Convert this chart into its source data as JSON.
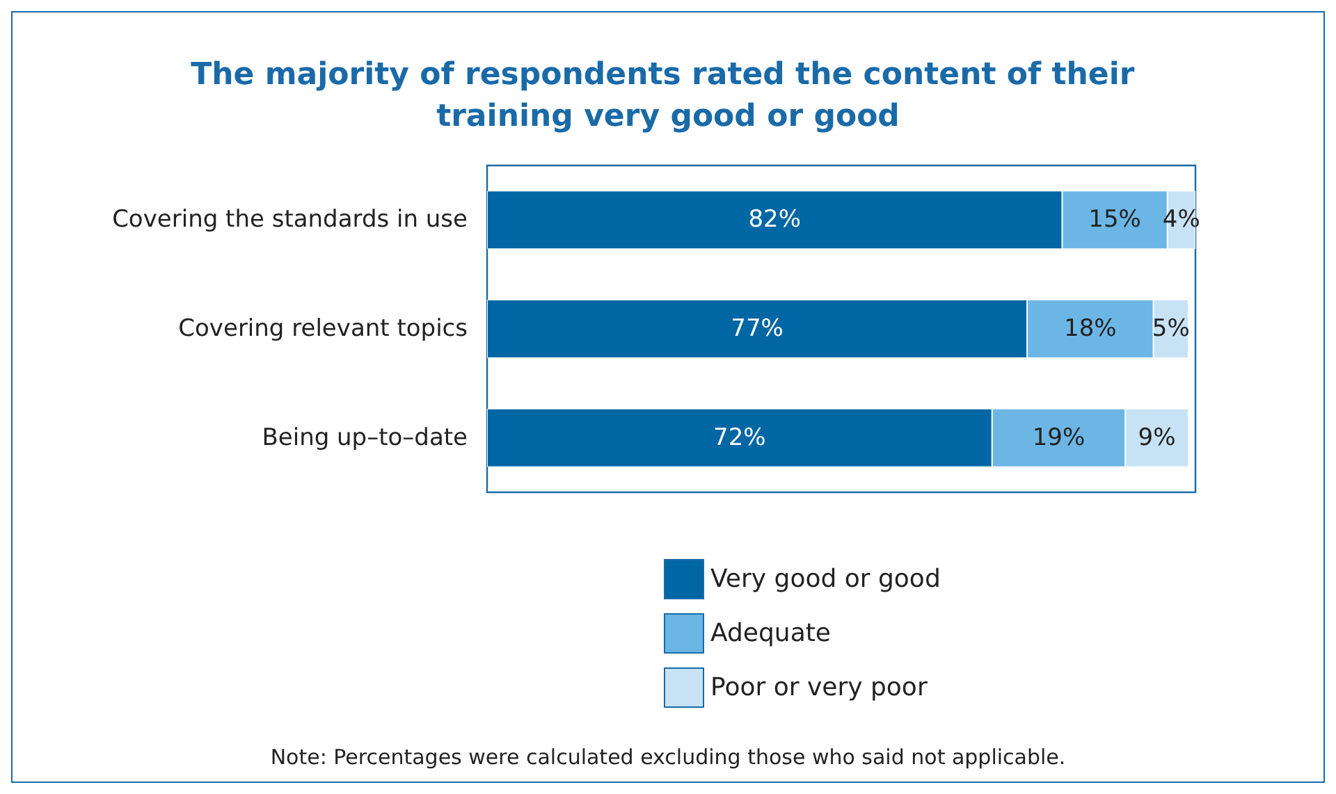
{
  "chart_data": {
    "type": "bar",
    "orientation": "horizontal",
    "stacked": true,
    "title": "The majority of respondents rated the content of their training very good or good",
    "categories": [
      "Covering the standards in use",
      "Covering relevant topics",
      "Being up–to–date"
    ],
    "series": [
      {
        "name": "Very good or good",
        "color": "#0066a4",
        "values": [
          82,
          77,
          72
        ],
        "value_labels": [
          "82%",
          "77%",
          "72%"
        ]
      },
      {
        "name": "Adequate",
        "color": "#6cb6e6",
        "values": [
          15,
          18,
          19
        ],
        "value_labels": [
          "15%",
          "18%",
          "19%"
        ]
      },
      {
        "name": "Poor or very poor",
        "color": "#c8e2f5",
        "values": [
          4,
          5,
          9
        ],
        "value_labels": [
          "4%",
          "5%",
          "9%"
        ]
      }
    ],
    "xlim": [
      0,
      101
    ],
    "tick_labels": "y",
    "legend": "bottom",
    "grid": false,
    "annotations": [
      "Note: Percentages were calculated excluding those who said not applicable."
    ]
  }
}
